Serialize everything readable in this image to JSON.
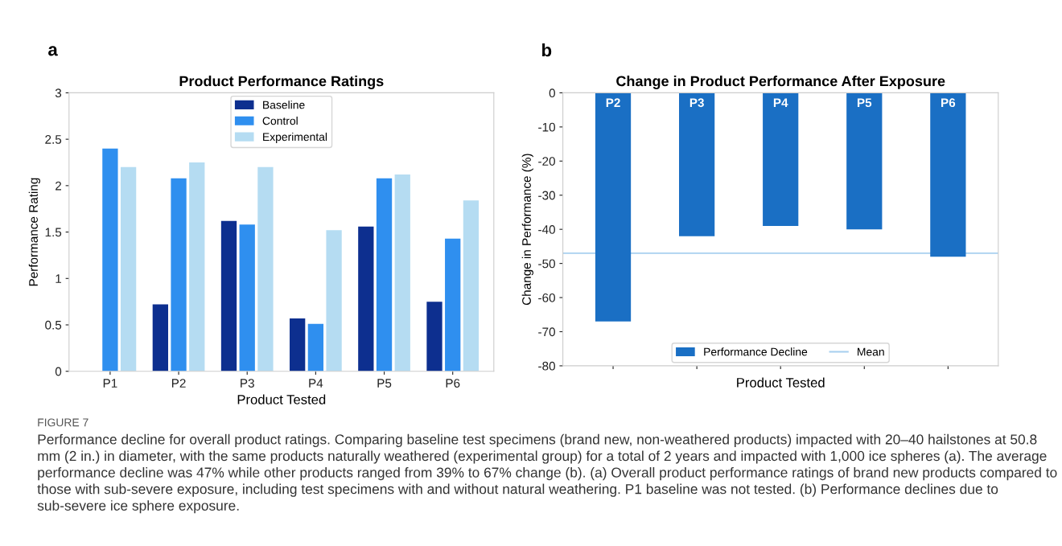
{
  "chart_data": [
    {
      "type": "bar",
      "title": "Product Performance Ratings",
      "xlabel": "Product Tested",
      "ylabel": "Performance Rating",
      "categories": [
        "P1",
        "P2",
        "P3",
        "P4",
        "P5",
        "P6"
      ],
      "series": [
        {
          "name": "Baseline",
          "color": "#0d2f8f",
          "values": [
            null,
            0.72,
            1.62,
            0.57,
            1.56,
            0.75
          ]
        },
        {
          "name": "Control",
          "color": "#2f8fef",
          "values": [
            2.4,
            2.08,
            1.58,
            0.51,
            2.08,
            1.43
          ]
        },
        {
          "name": "Experimental",
          "color": "#b5dcf2",
          "values": [
            2.2,
            2.25,
            2.2,
            1.52,
            2.12,
            1.84
          ]
        }
      ],
      "ylim": [
        0,
        3
      ],
      "yticks": [
        0,
        0.5,
        1,
        1.5,
        2,
        2.5,
        3
      ],
      "grid": false,
      "legend": "top",
      "annotations": [
        "a",
        "FIGURE 7",
        "Performance decline for overall product ratings. Comparing baseline test specimens (brand new, non-weathered products) impacted with 20–40 hailstones at 50.8 mm (2 in.) in diameter, with the same products naturally weathered (experimental group) for a total of 2 years and impacted with 1,000 ice spheres (a). The average performance decline was 47% while other products ranged from 39% to 67% change (b). (a) Overall product performance ratings of brand new products compared to those with sub-severe exposure, including test specimens with and without natural weathering. P1 baseline was not tested. (b) Performance declines due to sub-severe ice sphere exposure."
      ]
    },
    {
      "type": "bar",
      "title": "Change in Product Performance After Exposure",
      "xlabel": "Product Tested",
      "ylabel": "Change in Performance (%)",
      "categories": [
        "P2",
        "P3",
        "P4",
        "P5",
        "P6"
      ],
      "series": [
        {
          "name": "Performance Decline",
          "color": "#1a6fc4",
          "values": [
            -67,
            -42,
            -39,
            -40,
            -48
          ]
        }
      ],
      "ylim": [
        -80,
        0
      ],
      "yticks": [
        -80,
        -70,
        -60,
        -50,
        -40,
        -30,
        -20,
        -10,
        0
      ],
      "grid": false,
      "legend": "bottom",
      "tick_labels": "y",
      "ref_lines": [
        {
          "axis": "y",
          "value": -47,
          "label": "Mean",
          "color": "#a8d0ef",
          "line_style": "solid"
        }
      ],
      "annotations": [
        "b"
      ]
    }
  ]
}
